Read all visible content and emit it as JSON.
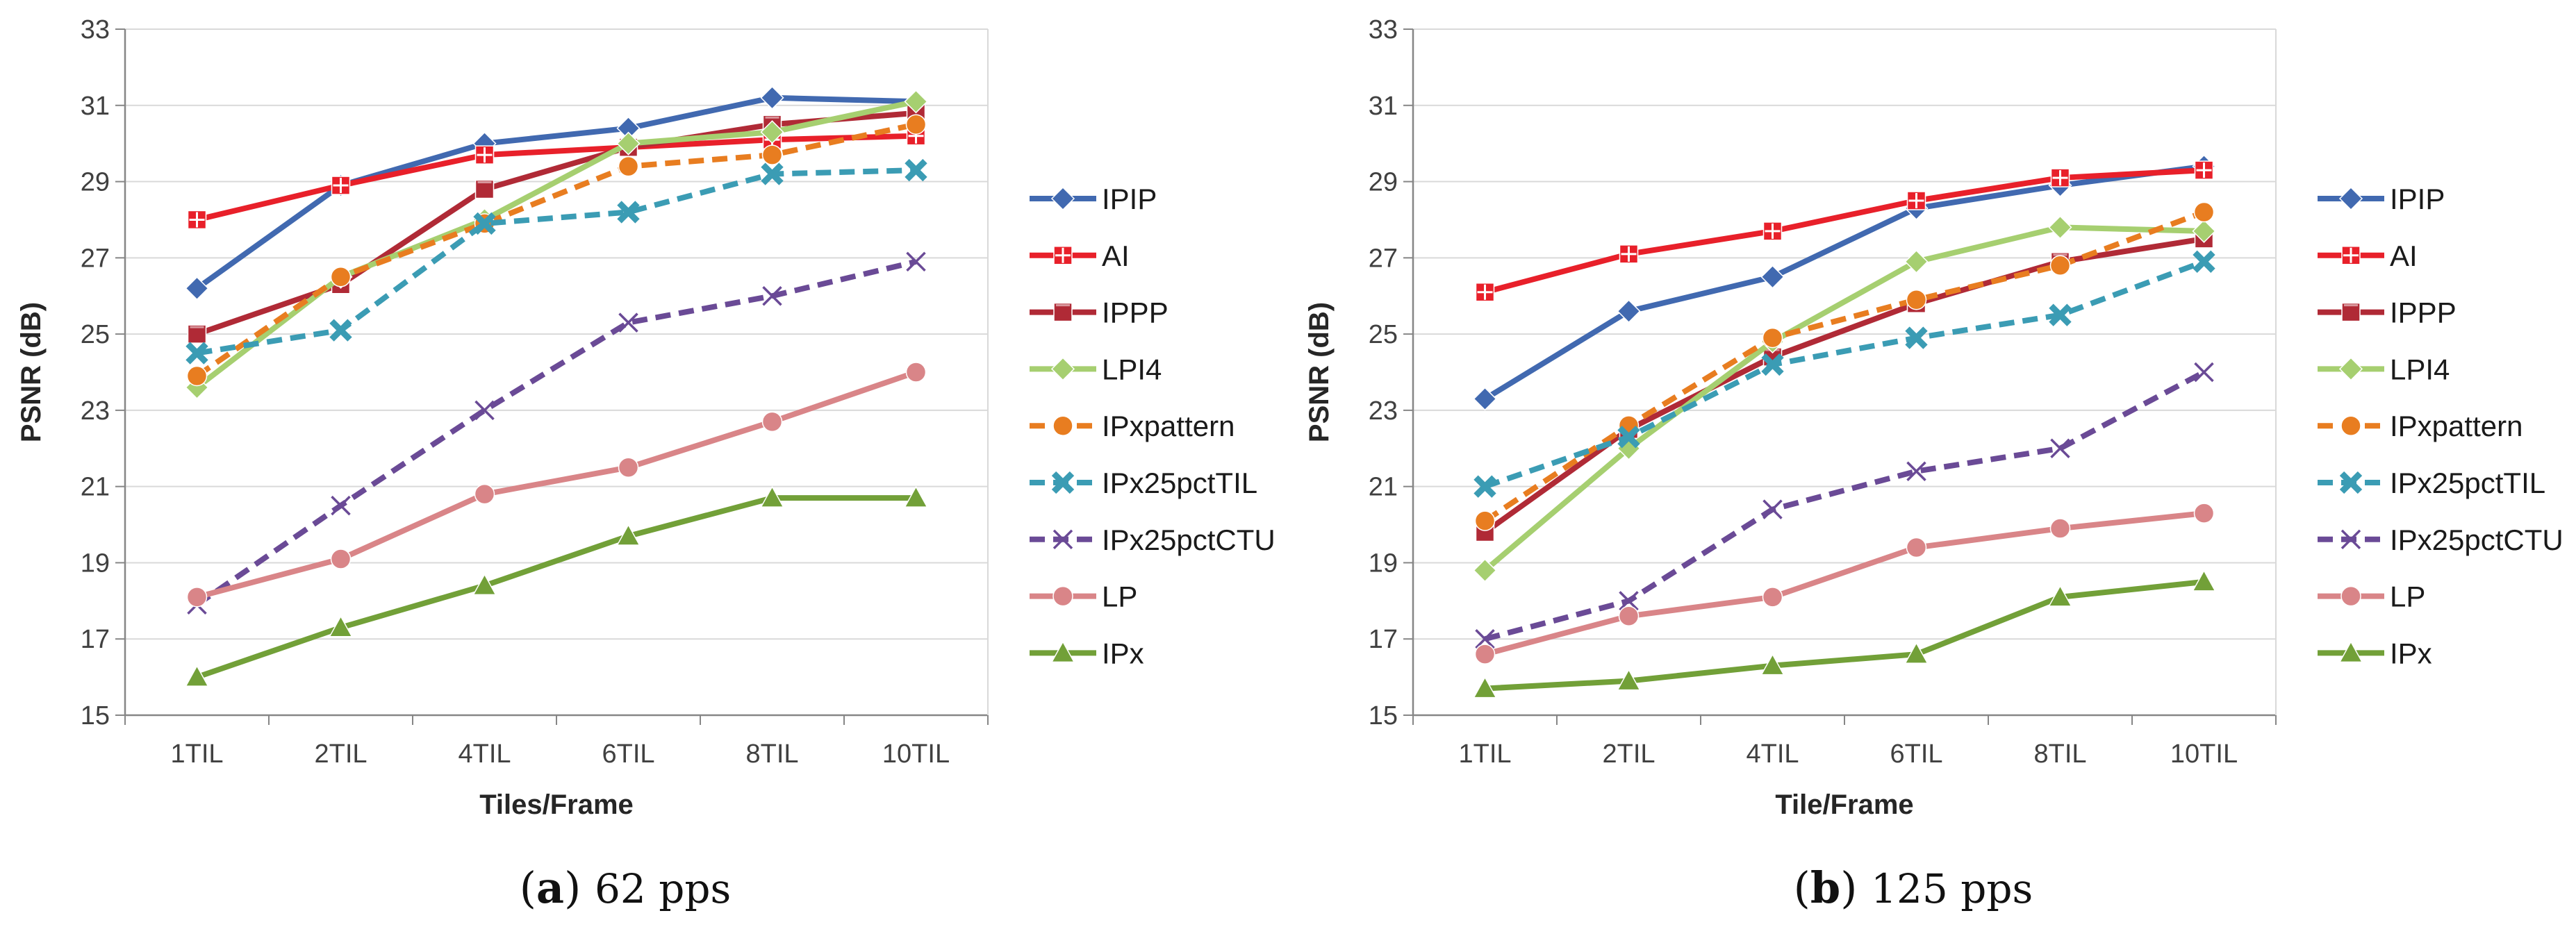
{
  "chart_data": [
    {
      "type": "line",
      "panel_label": "a",
      "caption": "62 pps",
      "xlabel": "Tiles/Frame",
      "ylabel": "PSNR (dB)",
      "categories": [
        "1TIL",
        "2TIL",
        "4TIL",
        "6TIL",
        "8TIL",
        "10TIL"
      ],
      "ylim": [
        15,
        33
      ],
      "yticks": [
        "15",
        "17",
        "19",
        "21",
        "23",
        "25",
        "27",
        "29",
        "31",
        "33"
      ],
      "legend_position": "right",
      "grid": true,
      "series": [
        {
          "name": "IPIP",
          "color": "#4169b0",
          "marker": "diamond",
          "dash": false,
          "values": [
            26.2,
            28.9,
            30.0,
            30.4,
            31.2,
            31.1
          ]
        },
        {
          "name": "AI",
          "color": "#e8202a",
          "marker": "square-plus",
          "dash": false,
          "values": [
            28.0,
            28.9,
            29.7,
            29.9,
            30.1,
            30.2
          ]
        },
        {
          "name": "IPPP",
          "color": "#b02a36",
          "marker": "square",
          "dash": false,
          "values": [
            25.0,
            26.3,
            28.8,
            29.9,
            30.5,
            30.8
          ]
        },
        {
          "name": "LPI4",
          "color": "#a6cf70",
          "marker": "diamond",
          "dash": false,
          "values": [
            23.6,
            26.5,
            28.0,
            30.0,
            30.3,
            31.1
          ]
        },
        {
          "name": "IPxpattern",
          "color": "#e87d20",
          "marker": "circle",
          "dash": true,
          "values": [
            23.9,
            26.5,
            27.9,
            29.4,
            29.7,
            30.5
          ]
        },
        {
          "name": "IPx25pctTIL",
          "color": "#3b9cb4",
          "marker": "x",
          "dash": true,
          "values": [
            24.5,
            25.1,
            27.9,
            28.2,
            29.2,
            29.3
          ]
        },
        {
          "name": "IPx25pctCTU",
          "color": "#6a4a96",
          "marker": "thin-x",
          "dash": true,
          "values": [
            17.9,
            20.5,
            23.0,
            25.3,
            26.0,
            26.9
          ]
        },
        {
          "name": "LP",
          "color": "#d98588",
          "marker": "circle",
          "dash": false,
          "values": [
            18.1,
            19.1,
            20.8,
            21.5,
            22.7,
            24.0
          ]
        },
        {
          "name": "IPx",
          "color": "#72a038",
          "marker": "triangle",
          "dash": false,
          "values": [
            16.0,
            17.3,
            18.4,
            19.7,
            20.7,
            20.7
          ]
        }
      ]
    },
    {
      "type": "line",
      "panel_label": "b",
      "caption": "125 pps",
      "xlabel": "Tile/Frame",
      "ylabel": "PSNR (dB)",
      "categories": [
        "1TIL",
        "2TIL",
        "4TIL",
        "6TIL",
        "8TIL",
        "10TIL"
      ],
      "ylim": [
        15,
        33
      ],
      "yticks": [
        "15",
        "17",
        "19",
        "21",
        "23",
        "25",
        "27",
        "29",
        "31",
        "33"
      ],
      "legend_position": "right",
      "grid": true,
      "series": [
        {
          "name": "IPIP",
          "color": "#4169b0",
          "marker": "diamond",
          "dash": false,
          "values": [
            23.3,
            25.6,
            26.5,
            28.3,
            28.9,
            29.4
          ]
        },
        {
          "name": "AI",
          "color": "#e8202a",
          "marker": "square-plus",
          "dash": false,
          "values": [
            26.1,
            27.1,
            27.7,
            28.5,
            29.1,
            29.3
          ]
        },
        {
          "name": "IPPP",
          "color": "#b02a36",
          "marker": "square",
          "dash": false,
          "values": [
            19.8,
            22.5,
            24.4,
            25.8,
            26.9,
            27.5
          ]
        },
        {
          "name": "LPI4",
          "color": "#a6cf70",
          "marker": "diamond",
          "dash": false,
          "values": [
            18.8,
            22.0,
            24.8,
            26.9,
            27.8,
            27.7
          ]
        },
        {
          "name": "IPxpattern",
          "color": "#e87d20",
          "marker": "circle",
          "dash": true,
          "values": [
            20.1,
            22.6,
            24.9,
            25.9,
            26.8,
            28.2
          ]
        },
        {
          "name": "IPx25pctTIL",
          "color": "#3b9cb4",
          "marker": "x",
          "dash": true,
          "values": [
            21.0,
            22.3,
            24.2,
            24.9,
            25.5,
            26.9
          ]
        },
        {
          "name": "IPx25pctCTU",
          "color": "#6a4a96",
          "marker": "thin-x",
          "dash": true,
          "values": [
            17.0,
            18.0,
            20.4,
            21.4,
            22.0,
            24.0
          ]
        },
        {
          "name": "LP",
          "color": "#d98588",
          "marker": "circle",
          "dash": false,
          "values": [
            16.6,
            17.6,
            18.1,
            19.4,
            19.9,
            20.3
          ]
        },
        {
          "name": "IPx",
          "color": "#72a038",
          "marker": "triangle",
          "dash": false,
          "values": [
            15.7,
            15.9,
            16.3,
            16.6,
            18.1,
            18.5
          ]
        }
      ]
    }
  ]
}
